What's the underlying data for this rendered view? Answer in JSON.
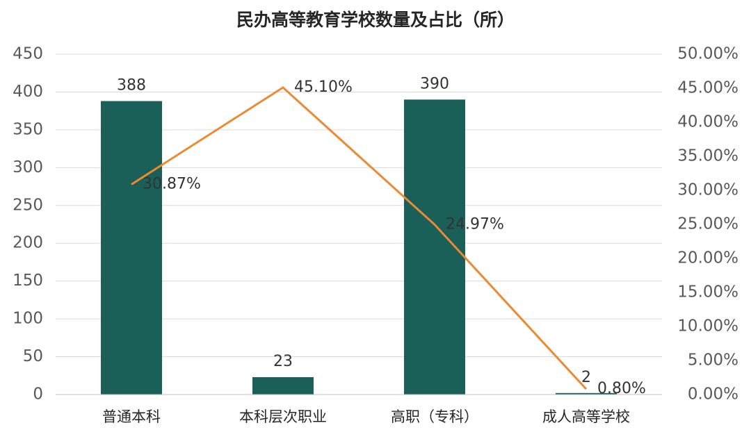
{
  "chart_data": {
    "type": "combo",
    "title": "民办高等教育学校数量及占比（所）",
    "categories": [
      "普通本科",
      "本科层次职业",
      "高职（专科）",
      "成人高等学校"
    ],
    "series": [
      {
        "type": "bar",
        "color": "#1a5f58",
        "values": [
          388,
          23,
          390,
          2
        ]
      },
      {
        "type": "line",
        "axis": "y2",
        "color": "#ed8a31",
        "values": [
          30.87,
          45.1,
          24.97,
          0.8
        ],
        "value_labels": [
          "30.87%",
          "45.10%",
          "24.97%",
          "0.80%"
        ]
      }
    ],
    "ylim": [
      0,
      450
    ],
    "yticks": [
      0,
      50,
      100,
      150,
      200,
      250,
      300,
      350,
      400,
      450
    ],
    "y2lim": [
      0,
      50
    ],
    "y2ticks": [
      {
        "value": 0,
        "label": "0.00%"
      },
      {
        "value": 5,
        "label": "5.00%"
      },
      {
        "value": 10,
        "label": "10.00%"
      },
      {
        "value": 15,
        "label": "15.00%"
      },
      {
        "value": 20,
        "label": "20.00%"
      },
      {
        "value": 25,
        "label": "25.00%"
      },
      {
        "value": 30,
        "label": "30.00%"
      },
      {
        "value": 35,
        "label": "35.00%"
      },
      {
        "value": 40,
        "label": "40.00%"
      },
      {
        "value": 45,
        "label": "45.00%"
      },
      {
        "value": 50,
        "label": "50.00%"
      }
    ],
    "grid": true
  }
}
